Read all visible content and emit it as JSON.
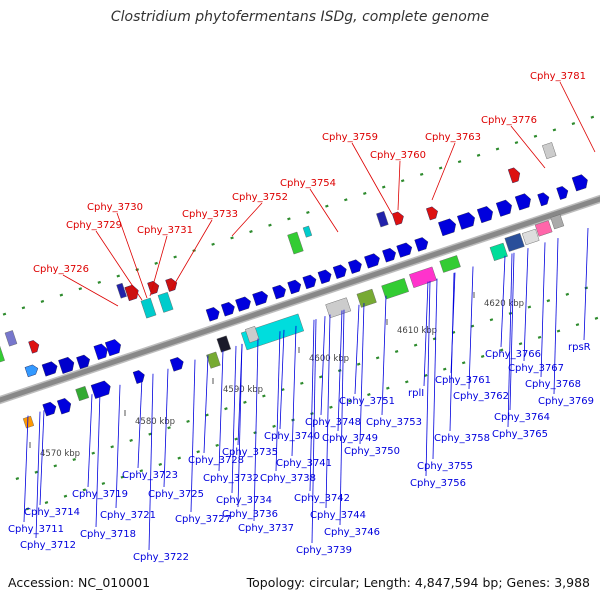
{
  "title": "Clostridium phytofermentans ISDg, complete genome",
  "accession": "Accession: NC_010001",
  "summary": "Topology: circular; Length: 4,847,594 bp; Genes: 3,988",
  "colors": {
    "label_top": "#dd0000",
    "label_bottom": "#0000dd",
    "backbone": "#888888",
    "ticks": "#2e8b2e"
  },
  "scale_ticks": [
    "4570 kbp",
    "4580 kbp",
    "4590 kbp",
    "4600 kbp",
    "4610 kbp",
    "4620 kbp"
  ],
  "top_labels": [
    "Cphy_3726",
    "Cphy_3729",
    "Cphy_3730",
    "Cphy_3731",
    "Cphy_3733",
    "Cphy_3752",
    "Cphy_3754",
    "Cphy_3759",
    "Cphy_3760",
    "Cphy_3763",
    "Cphy_3776",
    "Cphy_3781"
  ],
  "bottom_labels": [
    "Cphy_3711",
    "Cphy_3712",
    "Cphy_3714",
    "Cphy_3718",
    "Cphy_3719",
    "Cphy_3721",
    "Cphy_3722",
    "Cphy_3723",
    "Cphy_3725",
    "Cphy_3727",
    "Cphy_3728",
    "Cphy_3732",
    "Cphy_3734",
    "Cphy_3735",
    "Cphy_3736",
    "Cphy_3737",
    "Cphy_3738",
    "Cphy_3739",
    "Cphy_3740",
    "Cphy_3741",
    "Cphy_3742",
    "Cphy_3744",
    "Cphy_3746",
    "Cphy_3748",
    "Cphy_3749",
    "Cphy_3750",
    "Cphy_3751",
    "Cphy_3753",
    "rplI",
    "Cphy_3755",
    "Cphy_3756",
    "Cphy_3758",
    "Cphy_3761",
    "Cphy_3762",
    "Cphy_3764",
    "Cphy_3765",
    "Cphy_3766",
    "Cphy_3767",
    "Cphy_3768",
    "Cphy_3769",
    "rpsR"
  ]
}
